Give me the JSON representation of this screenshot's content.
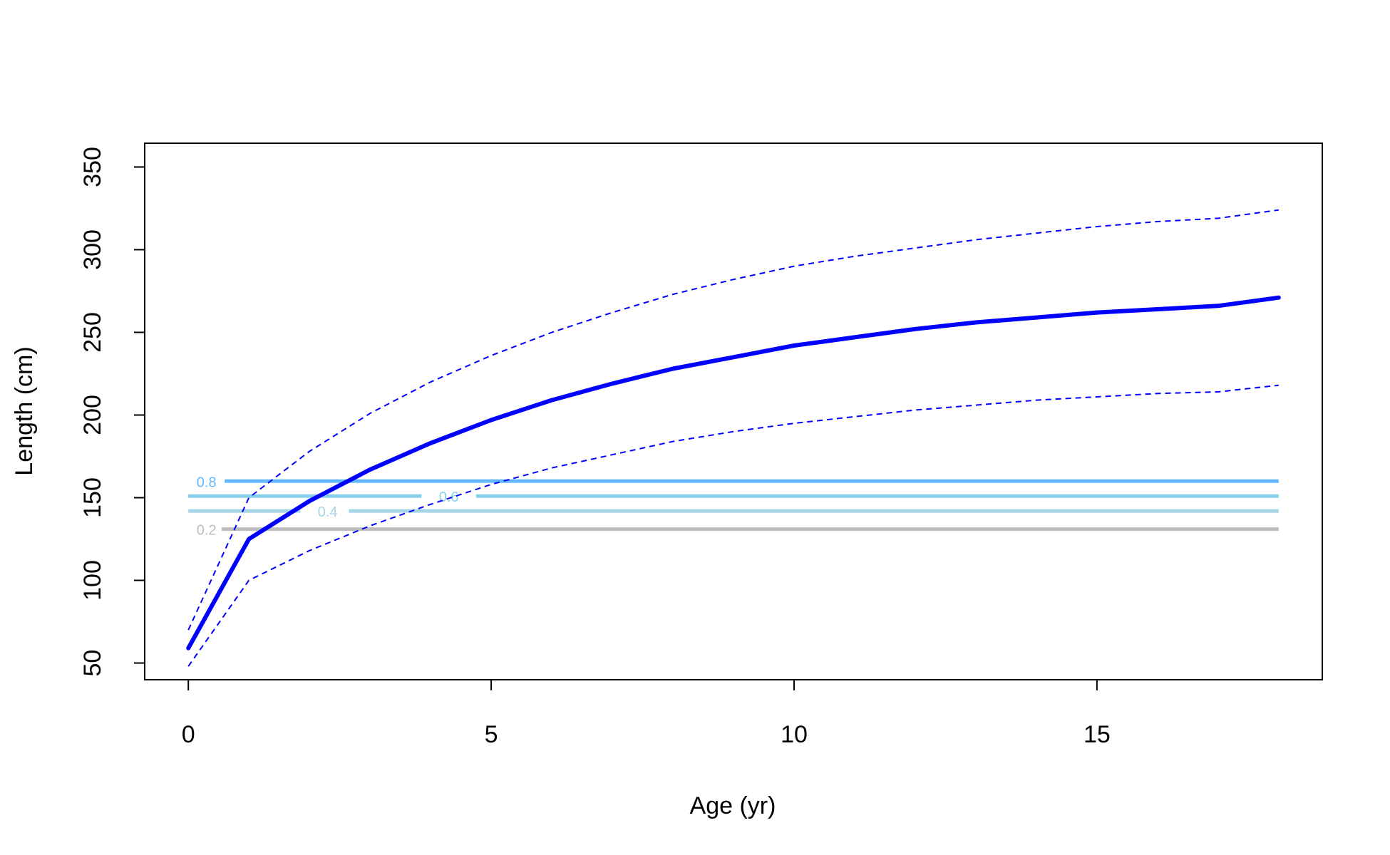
{
  "chart_data": {
    "type": "line",
    "title": "",
    "xlabel": "Age (yr)",
    "ylabel": "Length (cm)",
    "xlim": [
      -0.72,
      18.72
    ],
    "ylim": [
      39.9,
      364.4
    ],
    "xticks": [
      0,
      5,
      10,
      15
    ],
    "yticks": [
      50,
      100,
      150,
      200,
      250,
      300,
      350
    ],
    "grid": false,
    "legend": "none",
    "series": [
      {
        "role": "mean",
        "color": "#0000ff",
        "style": "solid-thick",
        "x": [
          0,
          1,
          2,
          3,
          4,
          5,
          6,
          7,
          8,
          9,
          10,
          11,
          12,
          13,
          14,
          15,
          16,
          17,
          18
        ],
        "values": [
          59,
          125,
          148,
          167,
          183,
          197,
          209,
          219,
          228,
          235,
          242,
          247,
          252,
          256,
          259,
          262,
          264,
          266,
          271
        ]
      },
      {
        "role": "upper",
        "color": "#0000ff",
        "style": "dashed",
        "x": [
          0,
          1,
          2,
          3,
          4,
          5,
          6,
          7,
          8,
          9,
          10,
          11,
          12,
          13,
          14,
          15,
          16,
          17,
          18
        ],
        "values": [
          70,
          150,
          178,
          201,
          220,
          236,
          250,
          262,
          273,
          282,
          290,
          296,
          301,
          306,
          310,
          314,
          317,
          319,
          324
        ]
      },
      {
        "role": "lower",
        "color": "#0000ff",
        "style": "dashed",
        "x": [
          0,
          1,
          2,
          3,
          4,
          5,
          6,
          7,
          8,
          9,
          10,
          11,
          12,
          13,
          14,
          15,
          16,
          17,
          18
        ],
        "values": [
          48,
          100,
          118,
          133,
          146,
          158,
          168,
          176,
          184,
          190,
          195,
          199,
          203,
          206,
          209,
          211,
          213,
          214,
          218
        ]
      }
    ],
    "contours": [
      {
        "label": "0.8",
        "y": 160,
        "color": "#63b8ff",
        "label_x": 0.3,
        "x_start": 0.6
      },
      {
        "label": "0.6",
        "y": 151,
        "color": "#87ceeb",
        "label_x": 4.3,
        "x_start": 0,
        "gap": [
          3.85,
          4.75
        ]
      },
      {
        "label": "0.4",
        "y": 142,
        "color": "#a6d5e8",
        "label_x": 2.3,
        "x_start": 0,
        "gap": [
          1.85,
          2.65
        ]
      },
      {
        "label": "0.2",
        "y": 131,
        "color": "#bebebe",
        "label_x": 0.3,
        "x_start": 0.55
      }
    ],
    "contour_x_end": 18
  }
}
